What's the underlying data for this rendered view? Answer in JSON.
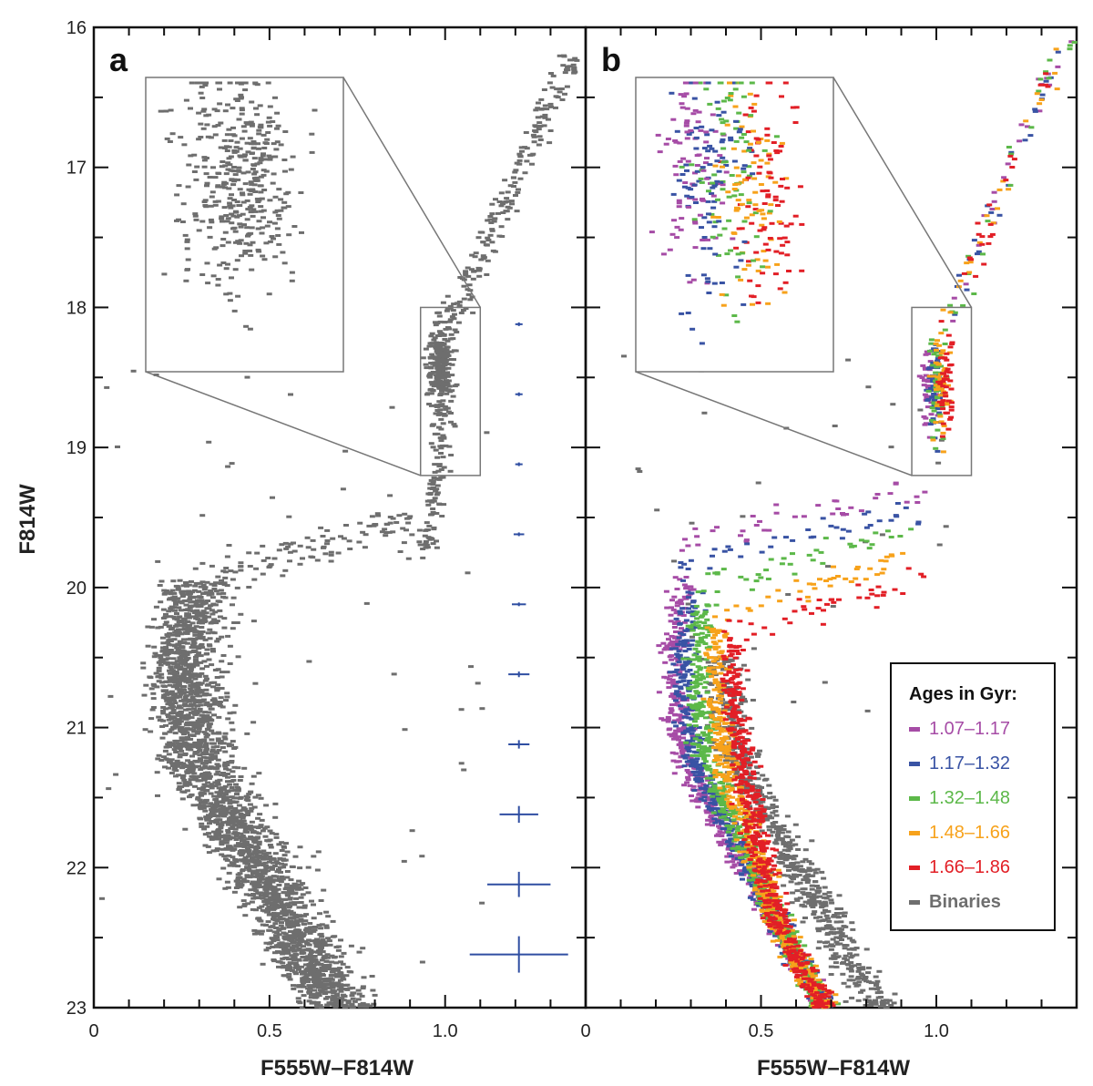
{
  "chart_data": [
    {
      "panel": "a",
      "type": "scatter",
      "xlabel": "F555W–F814W",
      "ylabel": "F814W",
      "xlim": [
        0.0,
        1.4
      ],
      "ylim": [
        23.0,
        16.0
      ],
      "y_inverted": true,
      "xticks": [
        0,
        0.5,
        1.0
      ],
      "xtick_labels": [
        "0",
        "0.5",
        "1.0"
      ],
      "yticks": [
        16,
        17,
        18,
        19,
        20,
        21,
        22,
        23
      ],
      "ytick_labels": [
        "16",
        "17",
        "18",
        "19",
        "20",
        "21",
        "22",
        "23"
      ],
      "series": [
        {
          "color": "#6e6e6e",
          "regions": [
            {
              "feature": "main sequence (upper)",
              "mag": [
                20.0,
                21.6
              ],
              "color_center": [
                0.28,
                0.33
              ],
              "width": 0.09,
              "density": "high"
            },
            {
              "feature": "main sequence (lower)",
              "mag": [
                21.6,
                23.0
              ],
              "color_center": [
                0.33,
                0.62
              ],
              "width": 0.07,
              "density": "high"
            },
            {
              "feature": "subgiant branch",
              "mag": [
                19.4,
                20.0
              ],
              "color_center": [
                0.35,
                0.95
              ],
              "density": "low"
            },
            {
              "feature": "red clump",
              "mag": [
                18.2,
                18.9
              ],
              "color_center": [
                0.99,
                1.0
              ],
              "density": "high"
            },
            {
              "feature": "red giant branch",
              "mag": [
                16.2,
                19.8
              ],
              "color_center": [
                0.95,
                1.36
              ],
              "density": "medium"
            }
          ]
        }
      ],
      "error_bars": [
        {
          "mag": 18.12,
          "color": 1.21,
          "sigma_color": 0.01,
          "sigma_mag": 0.01
        },
        {
          "mag": 18.62,
          "color": 1.21,
          "sigma_color": 0.01,
          "sigma_mag": 0.01
        },
        {
          "mag": 19.12,
          "color": 1.21,
          "sigma_color": 0.01,
          "sigma_mag": 0.01
        },
        {
          "mag": 19.62,
          "color": 1.21,
          "sigma_color": 0.015,
          "sigma_mag": 0.01
        },
        {
          "mag": 20.12,
          "color": 1.21,
          "sigma_color": 0.02,
          "sigma_mag": 0.01
        },
        {
          "mag": 20.62,
          "color": 1.21,
          "sigma_color": 0.03,
          "sigma_mag": 0.02
        },
        {
          "mag": 21.12,
          "color": 1.21,
          "sigma_color": 0.03,
          "sigma_mag": 0.03
        },
        {
          "mag": 21.62,
          "color": 1.21,
          "sigma_color": 0.055,
          "sigma_mag": 0.06
        },
        {
          "mag": 22.12,
          "color": 1.21,
          "sigma_color": 0.09,
          "sigma_mag": 0.09
        },
        {
          "mag": 22.62,
          "color": 1.21,
          "sigma_color": 0.14,
          "sigma_mag": 0.13
        }
      ],
      "inset": {
        "region_color": [
          0.93,
          1.1
        ],
        "region_mag": [
          18.0,
          19.2
        ]
      }
    },
    {
      "panel": "b",
      "type": "scatter",
      "xlabel": "F555W–F814W",
      "xlim": [
        0.0,
        1.4
      ],
      "ylim": [
        23.0,
        16.0
      ],
      "y_inverted": true,
      "xticks": [
        0,
        0.5,
        1.0
      ],
      "xtick_labels": [
        "0",
        "0.5",
        "1.0"
      ],
      "legend": {
        "title": "Ages in Gyr:",
        "position": "lower-right",
        "entries": [
          {
            "label": "1.07–1.17",
            "color": "#a64ca6"
          },
          {
            "label": "1.17–1.32",
            "color": "#3953a4"
          },
          {
            "label": "1.32–1.48",
            "color": "#5cb849"
          },
          {
            "label": "1.48–1.66",
            "color": "#f7a21b"
          },
          {
            "label": "1.66–1.86",
            "color": "#e21f26"
          },
          {
            "label": "Binaries",
            "color": "#6e6e6e"
          }
        ]
      },
      "series": [
        {
          "name": "1.07–1.17",
          "color": "#a64ca6",
          "turnoff_mag": 20.0,
          "turnoff_color": 0.23
        },
        {
          "name": "1.17–1.32",
          "color": "#3953a4",
          "turnoff_mag": 20.1,
          "turnoff_color": 0.26
        },
        {
          "name": "1.32–1.48",
          "color": "#5cb849",
          "turnoff_mag": 20.2,
          "turnoff_color": 0.3
        },
        {
          "name": "1.48–1.66",
          "color": "#f7a21b",
          "turnoff_mag": 20.35,
          "turnoff_color": 0.35
        },
        {
          "name": "1.66–1.86",
          "color": "#e21f26",
          "turnoff_mag": 20.45,
          "turnoff_color": 0.4
        },
        {
          "name": "Binaries",
          "color": "#6e6e6e",
          "offset_color": 0.15
        }
      ],
      "inset": {
        "region_color": [
          0.93,
          1.1
        ],
        "region_mag": [
          18.0,
          19.2
        ]
      }
    }
  ]
}
